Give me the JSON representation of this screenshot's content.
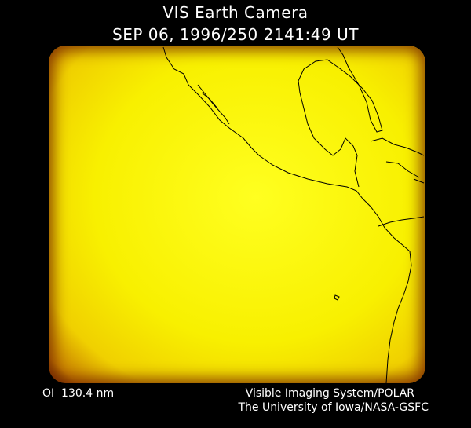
{
  "header": {
    "title": "VIS Earth Camera",
    "timestamp": "SEP 06, 1996/250 2141:49 UT"
  },
  "footer": {
    "wavelength": "OI  130.4 nm",
    "instrument": "Visible Imaging System/POLAR",
    "institution": "The University of Iowa/NASA-GSFC"
  },
  "colors": {
    "background": "#000000",
    "image_core": "#ffff20",
    "image_edge": "#602000",
    "coastline": "#000000"
  }
}
